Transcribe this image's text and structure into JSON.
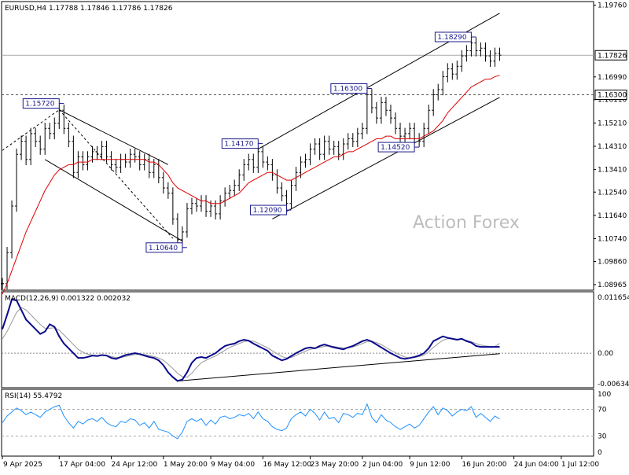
{
  "chart_data": [
    {
      "type": "line",
      "panel": "price",
      "header": "EURUSD,H4  1.17788 1.17846 1.17786 1.17826",
      "watermark": "Action Forex",
      "current_price": "1.17826",
      "ylim": [
        1.0875,
        1.199
      ],
      "yticks": [
        "1.19760",
        "1.16990",
        "1.16110",
        "1.15210",
        "1.14310",
        "1.13410",
        "1.12540",
        "1.11640",
        "1.10740",
        "1.09860",
        "1.08965"
      ],
      "horizontal_levels": [
        {
          "value": 1.163,
          "label": "1.16300",
          "style": "dashed"
        },
        {
          "value": 1.17826,
          "label": "1.17826",
          "style": "solid"
        }
      ],
      "level_labels": [
        {
          "text": "1.15720",
          "value": 1.1572,
          "x_index": 12
        },
        {
          "text": "1.10640",
          "value": 1.1064,
          "x_index": 38
        },
        {
          "text": "1.14170",
          "value": 1.1417,
          "x_index": 54
        },
        {
          "text": "1.12090",
          "value": 1.1209,
          "x_index": 60
        },
        {
          "text": "1.16300",
          "value": 1.163,
          "x_index": 77
        },
        {
          "text": "1.14520",
          "value": 1.1452,
          "x_index": 87
        },
        {
          "text": "1.18290",
          "value": 1.1829,
          "x_index": 99
        }
      ],
      "series": [
        {
          "name": "price",
          "color": "#000000",
          "values": [
            1.09,
            1.102,
            1.12,
            1.14,
            1.145,
            1.138,
            1.148,
            1.145,
            1.142,
            1.15,
            1.148,
            1.152,
            1.157,
            1.15,
            1.145,
            1.133,
            1.139,
            1.136,
            1.139,
            1.141,
            1.14,
            1.143,
            1.139,
            1.136,
            1.135,
            1.138,
            1.137,
            1.14,
            1.139,
            1.136,
            1.138,
            1.133,
            1.136,
            1.131,
            1.127,
            1.125,
            1.115,
            1.107,
            1.11,
            1.119,
            1.121,
            1.12,
            1.122,
            1.118,
            1.12,
            1.117,
            1.122,
            1.125,
            1.126,
            1.128,
            1.132,
            1.136,
            1.138,
            1.135,
            1.141,
            1.137,
            1.136,
            1.132,
            1.127,
            1.124,
            1.121,
            1.128,
            1.133,
            1.137,
            1.138,
            1.142,
            1.144,
            1.14,
            1.145,
            1.142,
            1.143,
            1.14,
            1.144,
            1.146,
            1.145,
            1.148,
            1.15,
            1.163,
            1.158,
            1.154,
            1.16,
            1.157,
            1.154,
            1.15,
            1.147,
            1.148,
            1.15,
            1.146,
            1.145,
            1.15,
            1.157,
            1.163,
            1.165,
            1.17,
            1.173,
            1.171,
            1.174,
            1.178,
            1.18,
            1.183,
            1.18,
            1.181,
            1.178,
            1.176,
            1.179,
            1.1783
          ]
        },
        {
          "name": "ma",
          "color": "#e00000",
          "values": [
            1.086,
            1.09,
            1.095,
            1.1,
            1.105,
            1.11,
            1.114,
            1.118,
            1.122,
            1.126,
            1.129,
            1.132,
            1.134,
            1.135,
            1.136,
            1.136,
            1.137,
            1.137,
            1.137,
            1.138,
            1.138,
            1.138,
            1.138,
            1.138,
            1.138,
            1.138,
            1.138,
            1.138,
            1.138,
            1.138,
            1.138,
            1.137,
            1.137,
            1.136,
            1.134,
            1.132,
            1.129,
            1.127,
            1.126,
            1.125,
            1.124,
            1.123,
            1.122,
            1.122,
            1.121,
            1.121,
            1.121,
            1.122,
            1.123,
            1.124,
            1.125,
            1.127,
            1.129,
            1.13,
            1.131,
            1.132,
            1.133,
            1.133,
            1.132,
            1.131,
            1.13,
            1.13,
            1.131,
            1.132,
            1.133,
            1.134,
            1.135,
            1.136,
            1.137,
            1.138,
            1.139,
            1.139,
            1.14,
            1.141,
            1.141,
            1.142,
            1.143,
            1.144,
            1.145,
            1.146,
            1.146,
            1.147,
            1.147,
            1.146,
            1.146,
            1.146,
            1.146,
            1.146,
            1.146,
            1.147,
            1.148,
            1.149,
            1.151,
            1.153,
            1.156,
            1.158,
            1.16,
            1.162,
            1.164,
            1.166,
            1.167,
            1.168,
            1.169,
            1.169,
            1.17,
            1.1705
          ]
        }
      ],
      "trendlines": [
        {
          "from": [
            12,
            1.1572
          ],
          "to": [
            35,
            1.136
          ]
        },
        {
          "from": [
            9,
            1.138
          ],
          "to": [
            38,
            1.1065
          ]
        },
        {
          "from": [
            12,
            1.1572
          ],
          "to": [
            36,
            1.1075
          ]
        },
        {
          "from": [
            0,
            1.1415
          ],
          "to": [
            12,
            1.1572
          ]
        },
        {
          "from": [
            54,
            1.142
          ],
          "to": [
            105,
            1.1945
          ]
        },
        {
          "from": [
            57,
            1.115
          ],
          "to": [
            105,
            1.162
          ]
        }
      ]
    },
    {
      "type": "line",
      "panel": "macd",
      "header": "MACD(12,26,9) 0.001322 0.002032",
      "ylim": [
        -0.0072,
        0.0128
      ],
      "yticks": [
        "0.011654",
        "0.00",
        "-0.006345"
      ],
      "series": [
        {
          "name": "macd",
          "color": "#0a0a8c",
          "values": [
            0.005,
            0.008,
            0.0112,
            0.011,
            0.009,
            0.007,
            0.006,
            0.005,
            0.004,
            0.0045,
            0.006,
            0.0055,
            0.0035,
            0.002,
            0.001,
            0.0,
            -0.001,
            -0.001,
            -0.0008,
            -0.0005,
            -0.0006,
            -0.0004,
            -0.0005,
            -0.001,
            -0.0012,
            -0.0008,
            -0.0004,
            -0.0002,
            0.0,
            -0.0002,
            -0.0005,
            -0.0008,
            -0.001,
            -0.0015,
            -0.0025,
            -0.004,
            -0.005,
            -0.0058,
            -0.0055,
            -0.004,
            -0.002,
            -0.001,
            -0.0008,
            -0.001,
            -0.0005,
            0.0,
            0.0008,
            0.0015,
            0.0018,
            0.002,
            0.0025,
            0.0028,
            0.0026,
            0.002,
            0.0015,
            0.001,
            0.0005,
            -0.0005,
            -0.001,
            -0.0015,
            -0.0012,
            -0.0006,
            0.0,
            0.0005,
            0.001,
            0.0012,
            0.001,
            0.0015,
            0.0018,
            0.0015,
            0.0012,
            0.001,
            0.0008,
            0.0012,
            0.0015,
            0.002,
            0.0025,
            0.0028,
            0.0024,
            0.0018,
            0.0012,
            0.0006,
            0.0,
            -0.0005,
            -0.001,
            -0.0012,
            -0.001,
            -0.0008,
            -0.0005,
            0.0,
            0.001,
            0.0025,
            0.003,
            0.0035,
            0.0032,
            0.003,
            0.0028,
            0.003,
            0.0025,
            0.0022,
            0.0015,
            0.0013,
            0.0013,
            0.0013,
            0.0013,
            0.00132
          ]
        },
        {
          "name": "signal",
          "color": "#999999",
          "values": [
            0.003,
            0.0045,
            0.0065,
            0.0085,
            0.0095,
            0.009,
            0.008,
            0.007,
            0.006,
            0.0052,
            0.0052,
            0.0053,
            0.0048,
            0.0038,
            0.0028,
            0.0018,
            0.0008,
            0.0002,
            -0.0002,
            -0.0004,
            -0.0005,
            -0.0005,
            -0.0005,
            -0.0007,
            -0.0009,
            -0.0009,
            -0.0007,
            -0.0005,
            -0.0003,
            -0.0002,
            -0.0003,
            -0.0005,
            -0.0007,
            -0.001,
            -0.0015,
            -0.0023,
            -0.0032,
            -0.0042,
            -0.0049,
            -0.005,
            -0.0042,
            -0.003,
            -0.002,
            -0.0015,
            -0.001,
            -0.0006,
            0.0,
            0.0006,
            0.0012,
            0.0016,
            0.002,
            0.0024,
            0.0026,
            0.0025,
            0.0021,
            0.0016,
            0.0011,
            0.0005,
            -0.0001,
            -0.0007,
            -0.001,
            -0.0009,
            -0.0005,
            0.0,
            0.0004,
            0.0008,
            0.001,
            0.0012,
            0.0014,
            0.0015,
            0.0014,
            0.0012,
            0.0011,
            0.0011,
            0.0013,
            0.0016,
            0.002,
            0.0024,
            0.0025,
            0.0022,
            0.0018,
            0.0012,
            0.0006,
            0.0001,
            -0.0004,
            -0.0008,
            -0.001,
            -0.0009,
            -0.0007,
            -0.0004,
            0.0003,
            0.0012,
            0.002,
            0.0027,
            0.003,
            0.003,
            0.0029,
            0.0029,
            0.0027,
            0.0024,
            0.002,
            0.0017,
            0.0015,
            0.0014,
            0.0014,
            0.002032
          ]
        }
      ],
      "trendlines": [
        {
          "from": [
            37,
            -0.0058
          ],
          "to": [
            105,
            -0.0001
          ]
        }
      ]
    },
    {
      "type": "line",
      "panel": "rsi",
      "header": "RSI(14) 55.4792",
      "ylim": [
        0,
        100
      ],
      "yticks": [
        "100",
        "70",
        "30",
        "0"
      ],
      "levels": [
        70,
        30
      ],
      "series": [
        {
          "name": "rsi",
          "color": "#1e90ff",
          "values": [
            50,
            60,
            66,
            72,
            68,
            62,
            66,
            62,
            58,
            66,
            70,
            74,
            76,
            60,
            50,
            42,
            52,
            48,
            54,
            56,
            52,
            58,
            50,
            46,
            44,
            52,
            50,
            56,
            54,
            46,
            50,
            42,
            52,
            40,
            38,
            36,
            30,
            26,
            36,
            52,
            56,
            52,
            56,
            46,
            54,
            48,
            58,
            60,
            56,
            58,
            62,
            60,
            64,
            56,
            66,
            56,
            52,
            44,
            40,
            38,
            42,
            56,
            62,
            66,
            60,
            70,
            64,
            54,
            66,
            56,
            58,
            50,
            64,
            62,
            58,
            64,
            62,
            78,
            58,
            50,
            62,
            54,
            50,
            44,
            40,
            44,
            48,
            42,
            46,
            56,
            66,
            74,
            62,
            72,
            68,
            60,
            66,
            70,
            68,
            74,
            58,
            64,
            58,
            52,
            60,
            55.48
          ]
        }
      ]
    }
  ],
  "x_axis": {
    "labels": [
      "9 Apr 2025",
      "17 Apr 04:00",
      "24 Apr 12:00",
      "1 May 20:00",
      "9 May 04:00",
      "16 May 12:00",
      "23 May 20:00",
      "2 Jun 04:00",
      "9 Jun 12:00",
      "16 Jun 20:00",
      "24 Jun 04:00",
      "1 Jul 12:00"
    ],
    "label_indices": [
      0,
      12,
      23,
      34,
      44,
      55,
      65,
      76,
      86,
      97,
      108,
      118
    ],
    "n": 106,
    "total_span": 124
  }
}
